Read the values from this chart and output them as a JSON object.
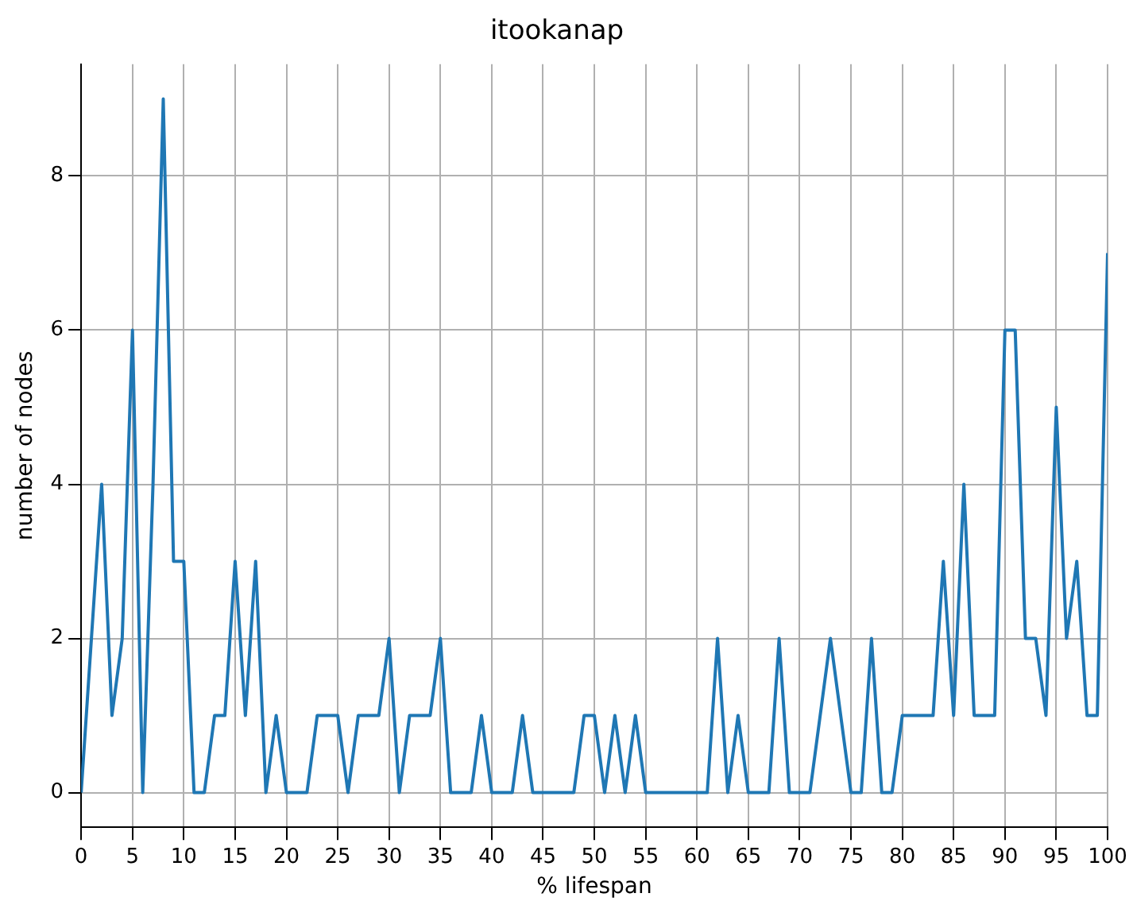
{
  "chart_data": {
    "type": "line",
    "title": "itookanap",
    "xlabel": "% lifespan",
    "ylabel": "number of nodes",
    "x": [
      0,
      1,
      2,
      3,
      4,
      5,
      6,
      7,
      8,
      9,
      10,
      11,
      12,
      13,
      14,
      15,
      16,
      17,
      18,
      19,
      20,
      21,
      22,
      23,
      24,
      25,
      26,
      27,
      28,
      29,
      30,
      31,
      32,
      33,
      34,
      35,
      36,
      37,
      38,
      39,
      40,
      41,
      42,
      43,
      44,
      45,
      46,
      47,
      48,
      49,
      50,
      51,
      52,
      53,
      54,
      55,
      56,
      57,
      58,
      59,
      60,
      61,
      62,
      63,
      64,
      65,
      66,
      67,
      68,
      69,
      70,
      71,
      72,
      73,
      74,
      75,
      76,
      77,
      78,
      79,
      80,
      81,
      82,
      83,
      84,
      85,
      86,
      87,
      88,
      89,
      90,
      91,
      92,
      93,
      94,
      95,
      96,
      97,
      98,
      99,
      100
    ],
    "series": [
      {
        "color": "#1f77b4",
        "values": [
          0,
          2,
          4,
          1,
          2,
          6,
          0,
          4,
          9,
          3,
          3,
          0,
          0,
          1,
          1,
          3,
          1,
          3,
          0,
          1,
          0,
          0,
          0,
          1,
          1,
          1,
          0,
          1,
          1,
          1,
          2,
          0,
          1,
          1,
          1,
          2,
          0,
          0,
          0,
          1,
          0,
          0,
          0,
          1,
          0,
          0,
          0,
          0,
          0,
          1,
          1,
          0,
          1,
          0,
          1,
          0,
          0,
          0,
          0,
          0,
          0,
          0,
          2,
          0,
          1,
          0,
          0,
          0,
          2,
          0,
          0,
          0,
          1,
          2,
          1,
          0,
          0,
          2,
          0,
          0,
          1,
          1,
          1,
          1,
          3,
          1,
          4,
          1,
          1,
          1,
          6,
          6,
          2,
          2,
          1,
          5,
          2,
          3,
          1,
          1,
          7
        ]
      }
    ],
    "xlim": [
      0,
      100
    ],
    "xticks": [
      0,
      5,
      10,
      15,
      20,
      25,
      30,
      35,
      40,
      45,
      50,
      55,
      60,
      65,
      70,
      75,
      80,
      85,
      90,
      95,
      100
    ],
    "ylim": [
      -0.45,
      9.45
    ],
    "yticks": [
      0,
      2,
      4,
      6,
      8
    ],
    "grid": true,
    "legend": false,
    "marker": "none",
    "line_style": "solid"
  }
}
